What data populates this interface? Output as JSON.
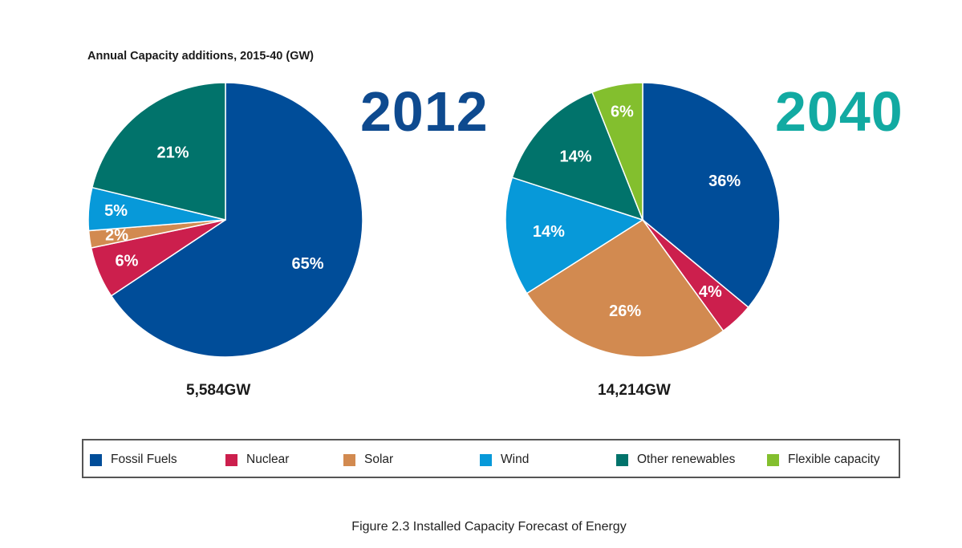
{
  "colors": {
    "fossil": "#004d99",
    "nuclear": "#cc1f4d",
    "solar": "#d28a50",
    "wind": "#0799d9",
    "other": "#01736b",
    "flexible": "#83bf2e",
    "year_2012": "#0e4a8f",
    "year_2040": "#12aaa2"
  },
  "chart_data": {
    "type": "pie",
    "title": "Annual Capacity additions, 2015-40 (GW)",
    "legend_position": "bottom",
    "legend": [
      "Fossil Fuels",
      "Nuclear",
      "Solar",
      "Wind",
      "Other renewables",
      "Flexible capacity"
    ],
    "charts": [
      {
        "year": "2012",
        "total": "5,584GW",
        "slices": [
          {
            "label": "Fossil Fuels",
            "value": 65,
            "text": "65%",
            "color": "#004d99"
          },
          {
            "label": "Nuclear",
            "value": 6,
            "text": "6%",
            "color": "#cc1f4d"
          },
          {
            "label": "Solar",
            "value": 2,
            "text": "2%",
            "color": "#d28a50"
          },
          {
            "label": "Wind",
            "value": 5,
            "text": "5%",
            "color": "#0799d9"
          },
          {
            "label": "Other renewables",
            "value": 21,
            "text": "21%",
            "color": "#01736b"
          }
        ]
      },
      {
        "year": "2040",
        "total": "14,214GW",
        "slices": [
          {
            "label": "Fossil Fuels",
            "value": 36,
            "text": "36%",
            "color": "#004d99"
          },
          {
            "label": "Nuclear",
            "value": 4,
            "text": "4%",
            "color": "#cc1f4d"
          },
          {
            "label": "Solar",
            "value": 26,
            "text": "26%",
            "color": "#d28a50"
          },
          {
            "label": "Wind",
            "value": 14,
            "text": "14%",
            "color": "#0799d9"
          },
          {
            "label": "Other renewables",
            "value": 14,
            "text": "14%",
            "color": "#01736b"
          },
          {
            "label": "Flexible capacity",
            "value": 6,
            "text": "6%",
            "color": "#83bf2e"
          }
        ]
      }
    ]
  },
  "caption": "Figure 2.3 Installed Capacity Forecast of Energy"
}
